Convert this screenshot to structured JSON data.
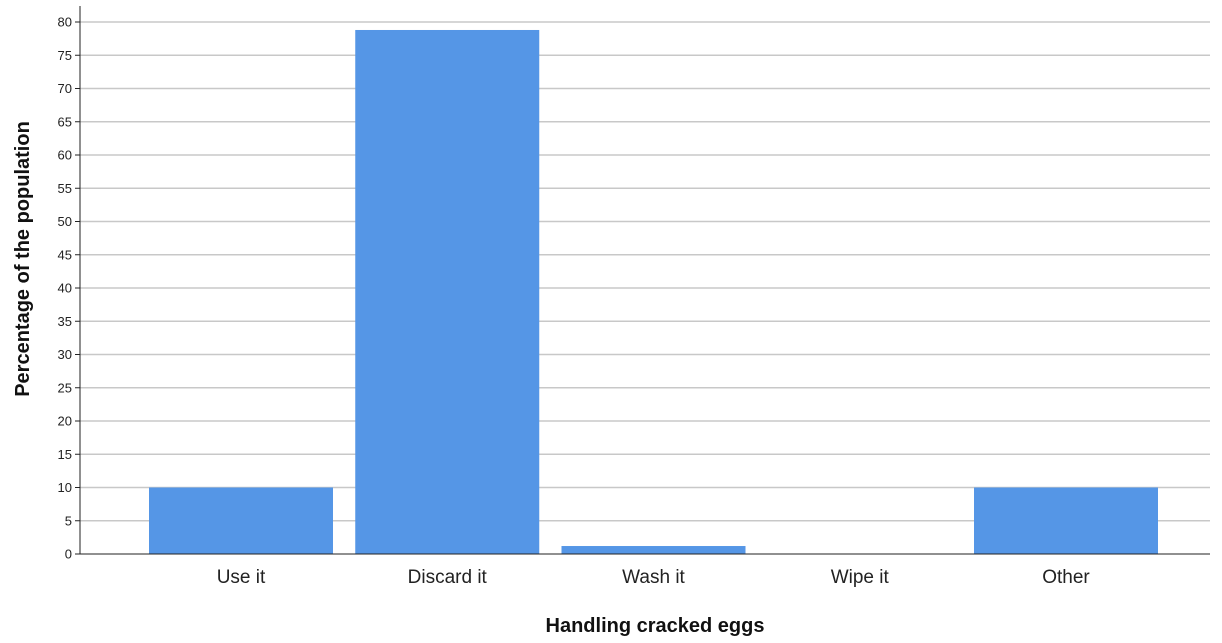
{
  "chart_data": {
    "type": "bar",
    "categories": [
      "Use it",
      "Discard it",
      "Wash it",
      "Wipe it",
      "Other"
    ],
    "values": [
      10.0,
      78.8,
      1.2,
      0.0,
      10.0
    ],
    "title": "",
    "xlabel": "Handling cracked eggs",
    "ylabel": "Percentage of the population",
    "ylim": [
      0,
      80
    ],
    "yticks": [
      0,
      5,
      10,
      15,
      20,
      25,
      30,
      35,
      40,
      45,
      50,
      55,
      60,
      65,
      70,
      75,
      80
    ],
    "grid": true,
    "legend": "none",
    "colors": {
      "bar": "#5596e6",
      "grid": "#c8c8c8",
      "axis": "#222222"
    }
  }
}
